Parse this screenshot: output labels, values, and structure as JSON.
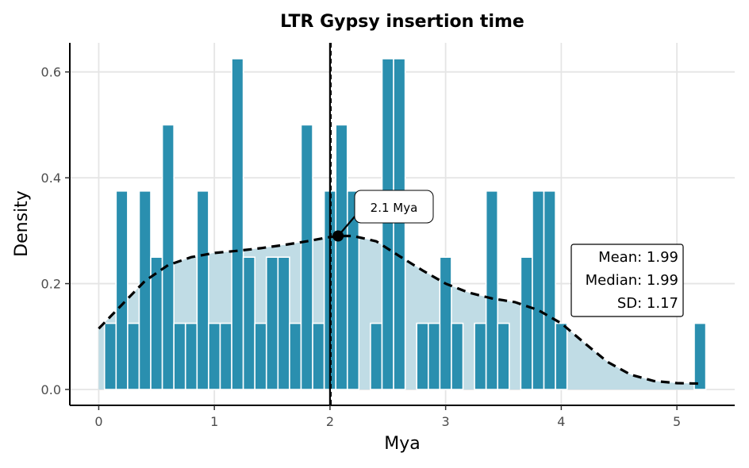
{
  "chart_data": {
    "type": "bar",
    "title": "LTR Gypsy insertion time",
    "xlabel": "Mya",
    "ylabel": "Density",
    "xlim": [
      -0.25,
      5.5
    ],
    "ylim": [
      -0.03,
      0.655
    ],
    "x_ticks": [
      "0",
      "1",
      "2",
      "3",
      "4",
      "5"
    ],
    "y_ticks": [
      "0.0",
      "0.2",
      "0.4",
      "0.6"
    ],
    "grid": true,
    "bin_width": 0.1,
    "bin_left_edges": [
      0.05,
      0.15,
      0.25,
      0.35,
      0.45,
      0.55,
      0.65,
      0.75,
      0.85,
      0.95,
      1.05,
      1.15,
      1.25,
      1.35,
      1.45,
      1.55,
      1.65,
      1.75,
      1.85,
      1.95,
      2.05,
      2.15,
      2.25,
      2.35,
      2.45,
      2.55,
      2.65,
      2.75,
      2.85,
      2.95,
      3.05,
      3.15,
      3.25,
      3.35,
      3.45,
      3.55,
      3.65,
      3.75,
      3.85,
      3.95,
      5.15
    ],
    "values": [
      0.125,
      0.375,
      0.125,
      0.375,
      0.25,
      0.5,
      0.125,
      0.125,
      0.375,
      0.125,
      0.125,
      0.625,
      0.25,
      0.125,
      0.25,
      0.25,
      0.125,
      0.5,
      0.125,
      0.375,
      0.5,
      0.375,
      0.0,
      0.125,
      0.625,
      0.625,
      0.0,
      0.125,
      0.125,
      0.25,
      0.125,
      0.0,
      0.125,
      0.375,
      0.125,
      0.0,
      0.25,
      0.375,
      0.375,
      0.125,
      0.125
    ],
    "density_x": [
      0.0,
      0.2,
      0.4,
      0.6,
      0.8,
      1.0,
      1.2,
      1.4,
      1.6,
      1.8,
      2.0,
      2.1,
      2.2,
      2.4,
      2.6,
      2.8,
      3.0,
      3.2,
      3.4,
      3.6,
      3.8,
      4.0,
      4.2,
      4.4,
      4.6,
      4.8,
      5.0,
      5.2
    ],
    "density_y": [
      0.115,
      0.16,
      0.205,
      0.235,
      0.25,
      0.258,
      0.262,
      0.267,
      0.273,
      0.28,
      0.288,
      0.29,
      0.29,
      0.28,
      0.252,
      0.225,
      0.2,
      0.183,
      0.172,
      0.165,
      0.15,
      0.125,
      0.088,
      0.052,
      0.028,
      0.016,
      0.012,
      0.011
    ],
    "colors": {
      "bar": "#2a8faf",
      "density_fill": "#c0dce5",
      "density_line": "#000000",
      "grid": "#e5e5e5"
    },
    "vline": {
      "x": 2.0
    },
    "peak_point": {
      "x": 2.07,
      "y": 0.29,
      "label": "2.1 Mya"
    },
    "stats": {
      "mean": "Mean: 1.99",
      "median": "Median: 1.99",
      "sd": "SD: 1.17"
    }
  }
}
